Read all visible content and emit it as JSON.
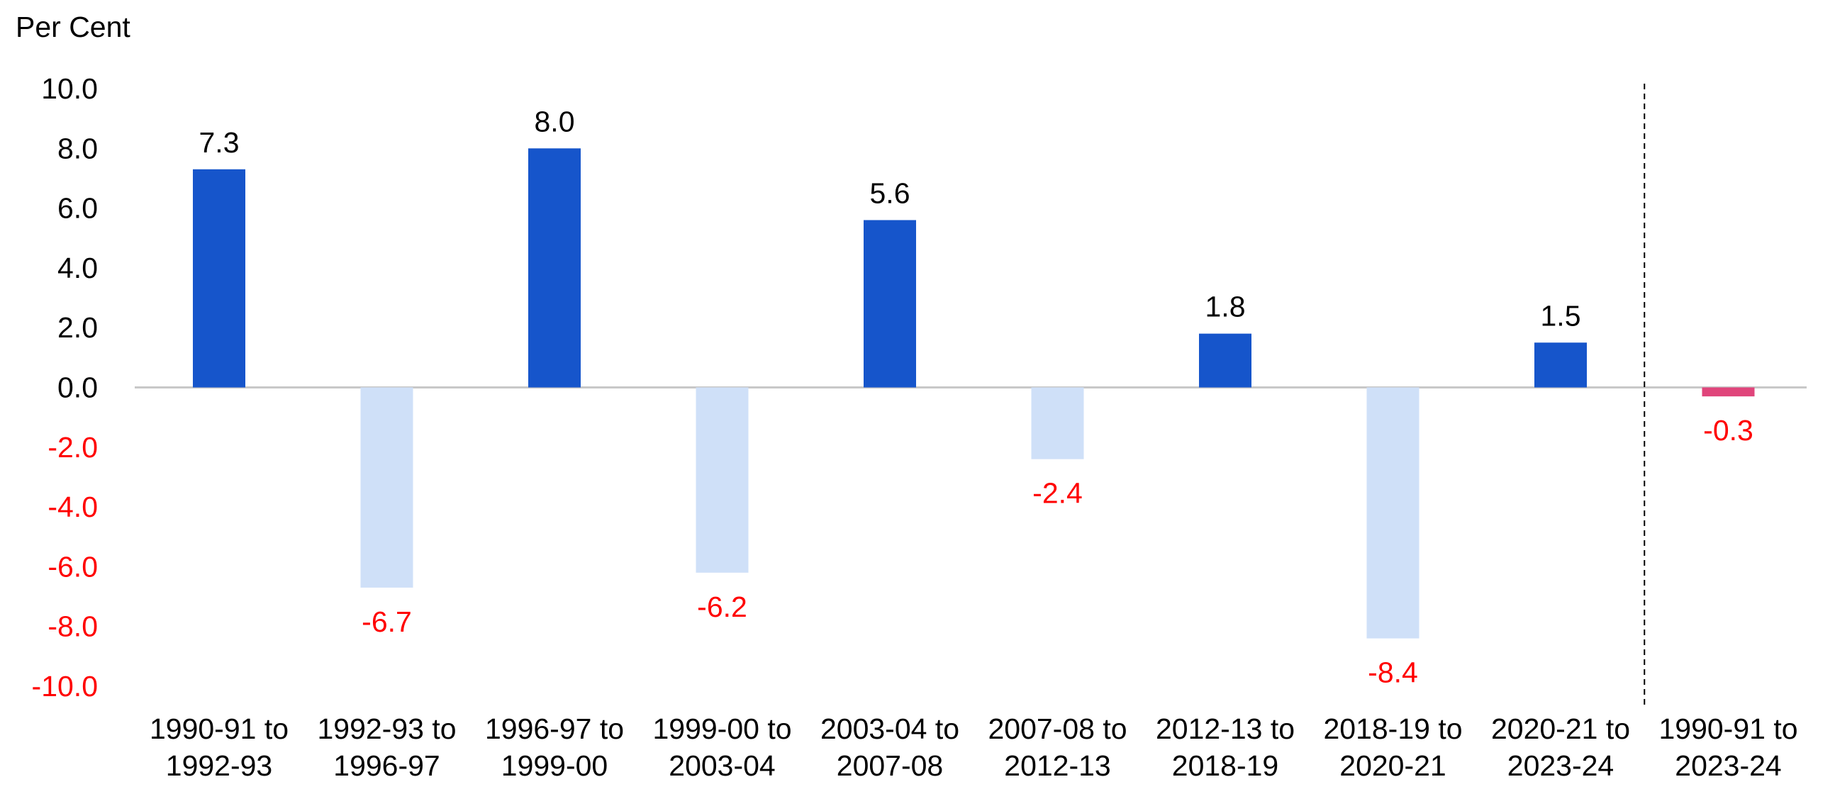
{
  "chart_data": {
    "type": "bar",
    "ylabel": "Per Cent",
    "ylim": [
      -10,
      10
    ],
    "yticks": [
      "10.0",
      "8.0",
      "6.0",
      "4.0",
      "2.0",
      "0.0",
      "-2.0",
      "-4.0",
      "-6.0",
      "-8.0",
      "-10.0"
    ],
    "ytick_values": [
      10,
      8,
      6,
      4,
      2,
      0,
      -2,
      -4,
      -6,
      -8,
      -10
    ],
    "categories": [
      [
        "1990-91 to",
        "1992-93"
      ],
      [
        "1992-93 to",
        "1996-97"
      ],
      [
        "1996-97 to",
        "1999-00"
      ],
      [
        "1999-00 to",
        "2003-04"
      ],
      [
        "2003-04 to",
        "2007-08"
      ],
      [
        "2007-08 to",
        "2012-13"
      ],
      [
        "2012-13 to",
        "2018-19"
      ],
      [
        "2018-19 to",
        "2020-21"
      ],
      [
        "2020-21 to",
        "2023-24"
      ],
      [
        "1990-91 to",
        "2023-24"
      ]
    ],
    "values": [
      7.3,
      -6.7,
      8.0,
      -6.2,
      5.6,
      -2.4,
      1.8,
      -8.4,
      1.5,
      -0.3
    ],
    "data_labels": [
      "7.3",
      "-6.7",
      "8.0",
      "-6.2",
      "5.6",
      "-2.4",
      "1.8",
      "-8.4",
      "1.5",
      "-0.3"
    ],
    "separator": "dashed vertical line before last category",
    "grid": false,
    "legend": "none",
    "colors": {
      "positive": "#1655CB",
      "negative": "#CFE0F8",
      "overall": "#E0457B",
      "negative_text": "#FF0000",
      "positive_text": "#000000",
      "zero_line": "#C8C8C8",
      "separator": "#000000"
    }
  }
}
